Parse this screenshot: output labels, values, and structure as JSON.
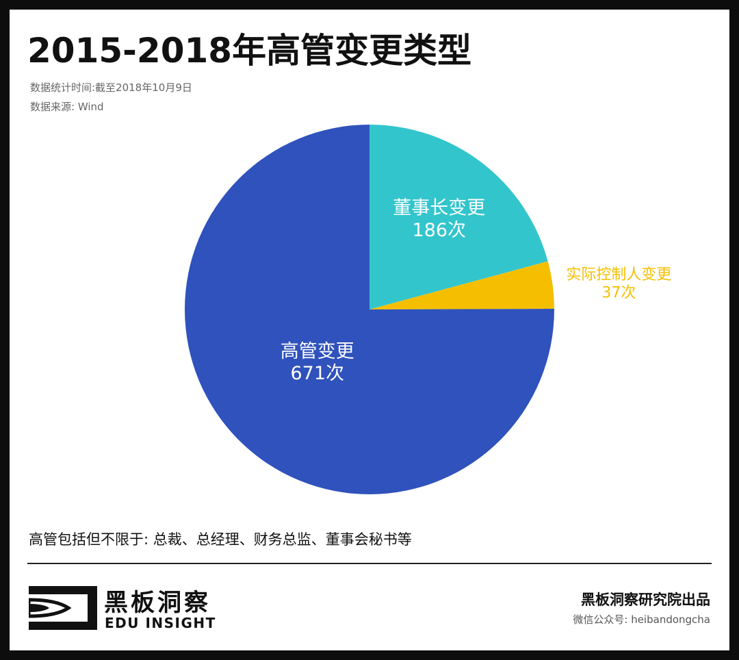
{
  "header": {
    "title": "2015-2018年高管变更类型",
    "stat_time": "数据统计时间:截至2018年10月9日",
    "source": "数据来源: Wind"
  },
  "chart_data": {
    "type": "pie",
    "start_angle_deg": 0,
    "direction": "clockwise",
    "slices": [
      {
        "label": "董事长变更",
        "value": 186,
        "value_label": "186次",
        "color": "#33c5cc",
        "label_color": "#ffffff",
        "label_position": "inside"
      },
      {
        "label": "实际控制人变更",
        "value": 37,
        "value_label": "37次",
        "color": "#f5bf00",
        "label_color": "#f5bf00",
        "label_position": "outside"
      },
      {
        "label": "高管变更",
        "value": 671,
        "value_label": "671次",
        "color": "#2f52bc",
        "label_color": "#ffffff",
        "label_position": "inside"
      }
    ],
    "legend": "none"
  },
  "footnote": "高管包括但不限于: 总裁、总经理、财务总监、董事会秘书等",
  "footer": {
    "logo_cn": "黑板洞察",
    "logo_en": "EDU INSIGHT",
    "logo_icon": "eye-icon",
    "credit": "黑板洞察研究院出品",
    "wechat": "微信公众号: heibandongcha"
  }
}
